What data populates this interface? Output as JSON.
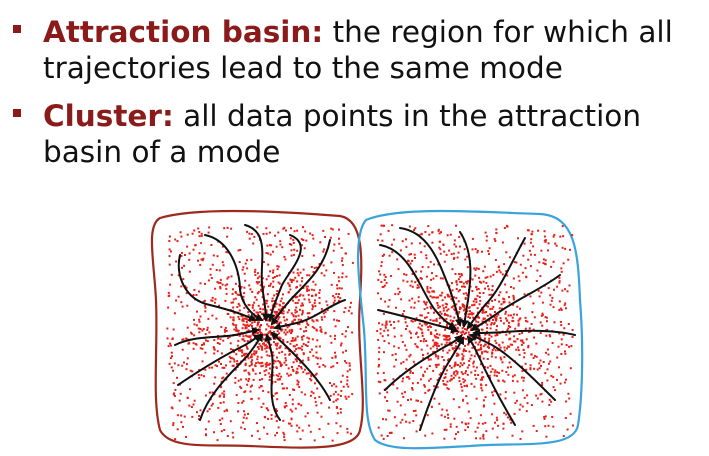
{
  "bullets": [
    {
      "term": "Attraction basin:",
      "text_line1": " the region for which all",
      "text_line2": "trajectories lead to the same mode"
    },
    {
      "term": "Cluster:",
      "text_line1": " all data points in the attraction",
      "text_line2": "basin of a mode"
    }
  ],
  "colors": {
    "term": "#8b1a1a",
    "body_text": "#111111",
    "left_basin_border": "#9e2a1e",
    "right_basin_border": "#3ba3dc",
    "points": "#e8201a",
    "trajectories": "#111111"
  },
  "icons": {
    "bullet": "square-bullet-icon"
  }
}
